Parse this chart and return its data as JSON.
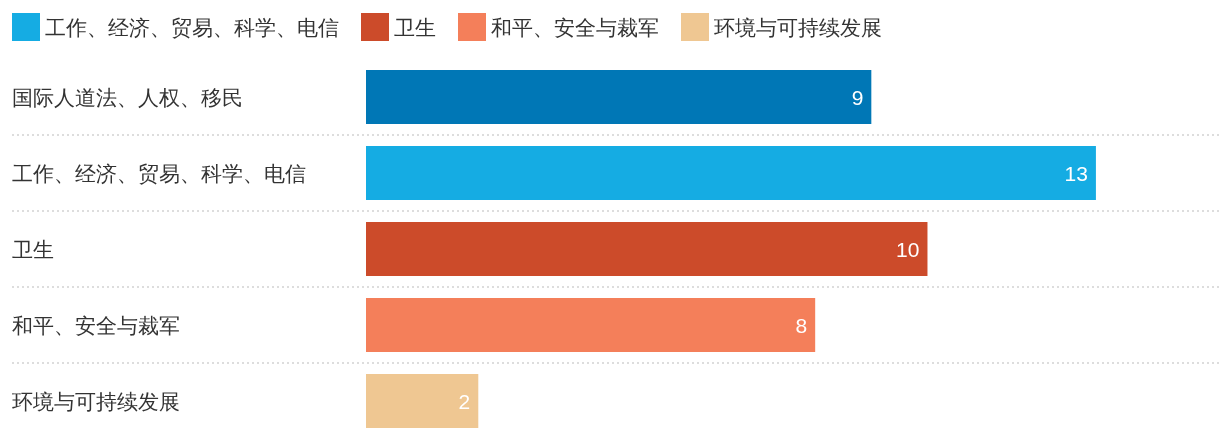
{
  "chart_data": {
    "type": "bar",
    "orientation": "horizontal",
    "data_labels": true,
    "grid": "y",
    "legend": "top left",
    "categories": [
      "国际人道法、人权、移民",
      "工作、经济、贸易、科学、电信",
      "卫生",
      "和平、安全与裁军",
      "环境与可持续发展"
    ],
    "series": [
      {
        "color": "#0077b6",
        "values": [
          9,
          null,
          null,
          null,
          null
        ]
      },
      {
        "name": "工作、经济、贸易、科学、电信",
        "color": "#15ace3",
        "values": [
          null,
          13,
          null,
          null,
          null
        ]
      },
      {
        "name": "卫生",
        "color": "#cc4b2a",
        "values": [
          null,
          null,
          10,
          null,
          null
        ]
      },
      {
        "name": "和平、安全与裁军",
        "color": "#f47f5a",
        "values": [
          null,
          null,
          null,
          8,
          null
        ]
      },
      {
        "name": "环境与可持续发展",
        "color": "#efc792",
        "values": [
          null,
          null,
          null,
          null,
          2
        ]
      }
    ]
  }
}
